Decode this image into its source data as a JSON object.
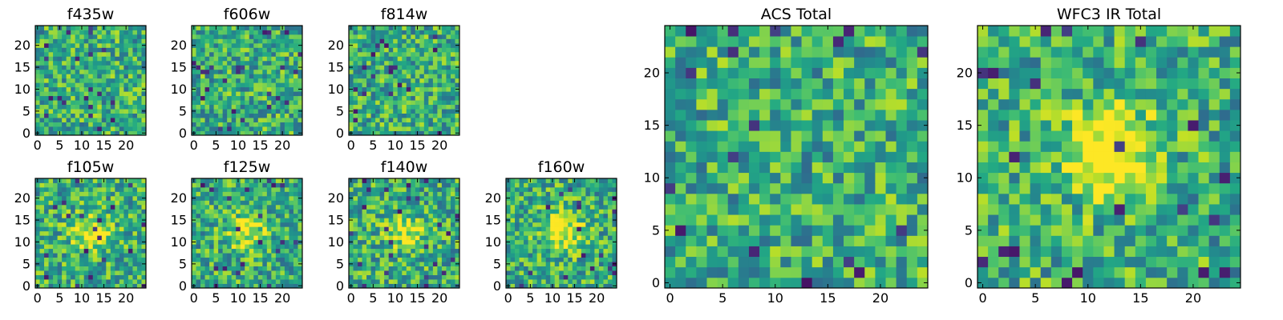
{
  "chart_data": [
    {
      "type": "heatmap",
      "title": "f435w",
      "size": 25,
      "seed": 11,
      "blob": 0.0,
      "xticks": [
        0,
        5,
        10,
        15,
        20
      ],
      "yticks": [
        0,
        5,
        10,
        15,
        20
      ],
      "xlim": [
        0,
        24
      ],
      "ylim": [
        0,
        24
      ],
      "colormap": "viridis"
    },
    {
      "type": "heatmap",
      "title": "f606w",
      "size": 25,
      "seed": 23,
      "blob": 0.0,
      "xticks": [
        0,
        5,
        10,
        15,
        20
      ],
      "yticks": [
        0,
        5,
        10,
        15,
        20
      ],
      "xlim": [
        0,
        24
      ],
      "ylim": [
        0,
        24
      ],
      "colormap": "viridis"
    },
    {
      "type": "heatmap",
      "title": "f814w",
      "size": 25,
      "seed": 37,
      "blob": 0.0,
      "xticks": [
        0,
        5,
        10,
        15,
        20
      ],
      "yticks": [
        0,
        5,
        10,
        15,
        20
      ],
      "xlim": [
        0,
        24
      ],
      "ylim": [
        0,
        24
      ],
      "colormap": "viridis"
    },
    {
      "type": "heatmap",
      "title": "f105w",
      "size": 25,
      "seed": 41,
      "blob": 0.35,
      "xticks": [
        0,
        5,
        10,
        15,
        20
      ],
      "yticks": [
        0,
        5,
        10,
        15,
        20
      ],
      "xlim": [
        0,
        24
      ],
      "ylim": [
        0,
        24
      ],
      "colormap": "viridis"
    },
    {
      "type": "heatmap",
      "title": "f125w",
      "size": 25,
      "seed": 53,
      "blob": 0.35,
      "xticks": [
        0,
        5,
        10,
        15,
        20
      ],
      "yticks": [
        0,
        5,
        10,
        15,
        20
      ],
      "xlim": [
        0,
        24
      ],
      "ylim": [
        0,
        24
      ],
      "colormap": "viridis"
    },
    {
      "type": "heatmap",
      "title": "f140w",
      "size": 25,
      "seed": 67,
      "blob": 0.3,
      "xticks": [
        0,
        5,
        10,
        15,
        20
      ],
      "yticks": [
        0,
        5,
        10,
        15,
        20
      ],
      "xlim": [
        0,
        24
      ],
      "ylim": [
        0,
        24
      ],
      "colormap": "viridis"
    },
    {
      "type": "heatmap",
      "title": "f160w",
      "size": 25,
      "seed": 79,
      "blob": 0.45,
      "xticks": [
        0,
        5,
        10,
        15,
        20
      ],
      "yticks": [
        0,
        5,
        10,
        15,
        20
      ],
      "xlim": [
        0,
        24
      ],
      "ylim": [
        0,
        24
      ],
      "colormap": "viridis"
    },
    {
      "type": "heatmap",
      "title": "ACS Total",
      "size": 25,
      "seed": 97,
      "blob": 0.0,
      "xticks": [
        0,
        5,
        10,
        15,
        20
      ],
      "yticks": [
        0,
        5,
        10,
        15,
        20
      ],
      "xlim": [
        0,
        24
      ],
      "ylim": [
        0,
        24
      ],
      "colormap": "viridis"
    },
    {
      "type": "heatmap",
      "title": "WFC3 IR Total",
      "size": 25,
      "seed": 113,
      "blob": 0.6,
      "xticks": [
        0,
        5,
        10,
        15,
        20
      ],
      "yticks": [
        0,
        5,
        10,
        15,
        20
      ],
      "xlim": [
        0,
        24
      ],
      "ylim": [
        0,
        24
      ],
      "colormap": "viridis"
    }
  ]
}
